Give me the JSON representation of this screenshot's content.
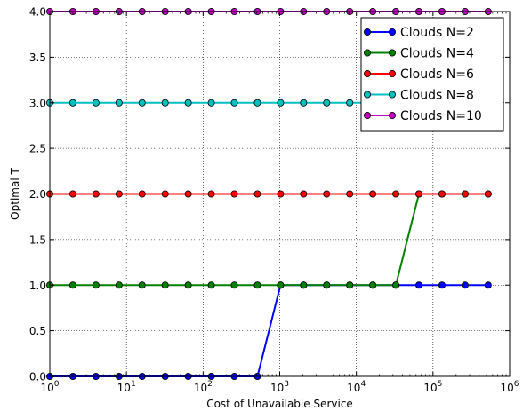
{
  "chart_data": {
    "type": "line",
    "xlabel": "Cost of Unavailable Service",
    "ylabel": "Optimal T",
    "xscale": "log",
    "xlim": [
      1,
      1000000
    ],
    "ylim": [
      0,
      4
    ],
    "grid": true,
    "legend_position": "top-right",
    "x_ticks": [
      {
        "value": 1,
        "base": "10",
        "exp": "0"
      },
      {
        "value": 10,
        "base": "10",
        "exp": "1"
      },
      {
        "value": 100,
        "base": "10",
        "exp": "2"
      },
      {
        "value": 1000,
        "base": "10",
        "exp": "3"
      },
      {
        "value": 10000,
        "base": "10",
        "exp": "4"
      },
      {
        "value": 100000,
        "base": "10",
        "exp": "5"
      },
      {
        "value": 1000000,
        "base": "10",
        "exp": "6"
      }
    ],
    "y_ticks": [
      "0.0",
      "0.5",
      "1.0",
      "1.5",
      "2.0",
      "2.5",
      "3.0",
      "3.5",
      "4.0"
    ],
    "x": [
      1,
      2,
      4,
      8,
      16,
      32,
      64,
      128,
      256,
      512,
      1024,
      2048,
      4096,
      8192,
      16384,
      32768,
      65536,
      131072,
      262144,
      524288
    ],
    "series": [
      {
        "name": "Clouds N=2",
        "color": "#0000ff",
        "values": [
          0,
          0,
          0,
          0,
          0,
          0,
          0,
          0,
          0,
          0,
          1,
          1,
          1,
          1,
          1,
          1,
          1,
          1,
          1,
          1
        ]
      },
      {
        "name": "Clouds N=4",
        "color": "#008000",
        "values": [
          1,
          1,
          1,
          1,
          1,
          1,
          1,
          1,
          1,
          1,
          1,
          1,
          1,
          1,
          1,
          1,
          2,
          2,
          2,
          2
        ]
      },
      {
        "name": "Clouds N=6",
        "color": "#ff0000",
        "values": [
          2,
          2,
          2,
          2,
          2,
          2,
          2,
          2,
          2,
          2,
          2,
          2,
          2,
          2,
          2,
          2,
          2,
          2,
          2,
          2
        ]
      },
      {
        "name": "Clouds N=8",
        "color": "#00bfbf",
        "values": [
          3,
          3,
          3,
          3,
          3,
          3,
          3,
          3,
          3,
          3,
          3,
          3,
          3,
          3,
          3,
          3,
          3,
          3,
          3,
          3
        ]
      },
      {
        "name": "Clouds N=10",
        "color": "#bf00bf",
        "values": [
          4,
          4,
          4,
          4,
          4,
          4,
          4,
          4,
          4,
          4,
          4,
          4,
          4,
          4,
          4,
          4,
          4,
          4,
          4,
          4
        ]
      }
    ]
  }
}
